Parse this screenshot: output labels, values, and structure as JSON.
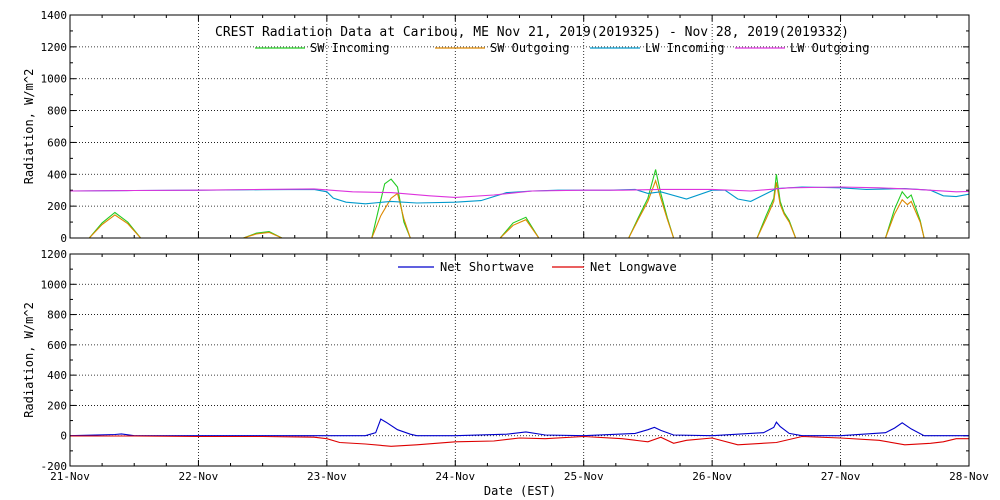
{
  "figure": {
    "title": "CREST Radiation Data at Caribou, ME   Nov 21, 2019(2019325) - Nov 28, 2019(2019332)",
    "xlabel": "Date (EST)"
  },
  "chart_data": [
    {
      "type": "line",
      "ylabel": "Radiation, W/m^2",
      "ylim": [
        0,
        1400
      ],
      "yticks": [
        0,
        200,
        400,
        600,
        800,
        1000,
        1200,
        1400
      ],
      "xlim": [
        "2019-11-21",
        "2019-11-28"
      ],
      "xticks": [
        "21-Nov",
        "22-Nov",
        "23-Nov",
        "24-Nov",
        "25-Nov",
        "26-Nov",
        "27-Nov",
        "28-Nov"
      ],
      "grid": true,
      "legend_placement": "top",
      "series": [
        {
          "name": "SW Incoming",
          "color": "#22cc22",
          "x": [
            0,
            0.15,
            0.25,
            0.35,
            0.45,
            0.55,
            0.65,
            1.0,
            1.35,
            1.45,
            1.55,
            1.65,
            2.0,
            2.35,
            2.4,
            2.45,
            2.5,
            2.55,
            2.6,
            2.65,
            2.7,
            3.0,
            3.35,
            3.45,
            3.55,
            3.65,
            4.0,
            4.35,
            4.42,
            4.5,
            4.56,
            4.6,
            4.65,
            4.7,
            5.0,
            5.35,
            5.42,
            5.48,
            5.5,
            5.53,
            5.56,
            5.6,
            5.65,
            6.0,
            6.35,
            6.42,
            6.48,
            6.52,
            6.55,
            6.62,
            6.65,
            7.0
          ],
          "y": [
            0,
            0,
            95,
            160,
            100,
            0,
            0,
            0,
            0,
            30,
            40,
            0,
            0,
            0,
            170,
            340,
            370,
            320,
            100,
            0,
            0,
            0,
            0,
            95,
            130,
            0,
            0,
            0,
            120,
            250,
            430,
            280,
            130,
            0,
            0,
            0,
            140,
            250,
            400,
            230,
            160,
            110,
            0,
            0,
            0,
            180,
            290,
            250,
            270,
            110,
            0,
            0
          ]
        },
        {
          "name": "SW Outgoing",
          "color": "#dd8800",
          "x": [
            0,
            0.15,
            0.25,
            0.35,
            0.45,
            0.55,
            0.65,
            1.0,
            1.35,
            1.45,
            1.55,
            1.65,
            2.0,
            2.35,
            2.42,
            2.5,
            2.55,
            2.6,
            2.65,
            2.7,
            3.0,
            3.35,
            3.45,
            3.55,
            3.65,
            4.0,
            4.35,
            4.42,
            4.5,
            4.56,
            4.6,
            4.65,
            4.7,
            5.0,
            5.35,
            5.42,
            5.48,
            5.5,
            5.53,
            5.56,
            5.6,
            5.65,
            6.0,
            6.35,
            6.42,
            6.48,
            6.52,
            6.55,
            6.62,
            6.65,
            7.0
          ],
          "y": [
            0,
            0,
            85,
            145,
            90,
            0,
            0,
            0,
            0,
            25,
            35,
            0,
            0,
            0,
            140,
            250,
            280,
            120,
            0,
            0,
            0,
            0,
            80,
            115,
            0,
            0,
            0,
            110,
            230,
            360,
            250,
            120,
            0,
            0,
            0,
            120,
            230,
            350,
            210,
            150,
            100,
            0,
            0,
            0,
            150,
            240,
            210,
            230,
            100,
            0,
            0
          ]
        },
        {
          "name": "LW Incoming",
          "color": "#0099cc",
          "x": [
            0,
            0.5,
            1.0,
            1.5,
            1.9,
            2.0,
            2.05,
            2.15,
            2.3,
            2.5,
            2.7,
            3.0,
            3.2,
            3.4,
            3.6,
            3.8,
            4.0,
            4.2,
            4.4,
            4.5,
            4.6,
            4.8,
            5.0,
            5.1,
            5.2,
            5.3,
            5.5,
            5.7,
            6.0,
            6.2,
            6.5,
            6.7,
            6.8,
            6.9,
            7.0
          ],
          "y": [
            295,
            298,
            300,
            303,
            305,
            290,
            250,
            225,
            215,
            230,
            220,
            225,
            235,
            285,
            295,
            300,
            300,
            300,
            305,
            280,
            290,
            245,
            300,
            300,
            245,
            230,
            310,
            320,
            315,
            305,
            310,
            300,
            265,
            260,
            275
          ]
        },
        {
          "name": "LW Outgoing",
          "color": "#dd33dd",
          "x": [
            0,
            0.5,
            1.0,
            1.5,
            1.9,
            2.2,
            2.5,
            2.8,
            3.0,
            3.3,
            3.6,
            4.0,
            4.3,
            4.6,
            5.0,
            5.3,
            5.6,
            6.0,
            6.3,
            6.6,
            6.9,
            7.0
          ],
          "y": [
            295,
            298,
            300,
            305,
            308,
            290,
            285,
            265,
            255,
            270,
            295,
            300,
            300,
            305,
            305,
            295,
            315,
            320,
            315,
            305,
            290,
            292
          ]
        }
      ]
    },
    {
      "type": "line",
      "ylabel": "Radiation, W/m^2",
      "ylim": [
        -200,
        1200
      ],
      "yticks": [
        -200,
        0,
        200,
        400,
        600,
        800,
        1000,
        1200
      ],
      "xlim": [
        "2019-11-21",
        "2019-11-28"
      ],
      "xticks": [
        "21-Nov",
        "22-Nov",
        "23-Nov",
        "24-Nov",
        "25-Nov",
        "26-Nov",
        "27-Nov",
        "28-Nov"
      ],
      "grid": true,
      "legend_placement": "top",
      "series": [
        {
          "name": "Net Shortwave",
          "color": "#0000cc",
          "x": [
            0,
            0.35,
            0.4,
            0.5,
            1.0,
            1.5,
            2.0,
            2.3,
            2.38,
            2.42,
            2.46,
            2.55,
            2.65,
            2.7,
            3.0,
            3.4,
            3.55,
            3.7,
            4.0,
            4.4,
            4.5,
            4.55,
            4.6,
            4.7,
            5.0,
            5.4,
            5.48,
            5.5,
            5.53,
            5.6,
            5.7,
            6.0,
            6.35,
            6.42,
            6.48,
            6.55,
            6.65,
            7.0
          ],
          "y": [
            0,
            8,
            12,
            0,
            0,
            0,
            0,
            0,
            20,
            110,
            90,
            40,
            10,
            0,
            0,
            10,
            25,
            5,
            0,
            15,
            40,
            55,
            35,
            5,
            0,
            20,
            55,
            90,
            60,
            15,
            0,
            0,
            20,
            50,
            85,
            45,
            0,
            0
          ]
        },
        {
          "name": "Net Longwave",
          "color": "#dd0000",
          "x": [
            0,
            0.5,
            1.0,
            1.5,
            1.9,
            2.0,
            2.1,
            2.3,
            2.5,
            2.7,
            3.0,
            3.3,
            3.5,
            3.7,
            4.0,
            4.3,
            4.5,
            4.6,
            4.7,
            4.8,
            5.0,
            5.2,
            5.5,
            5.7,
            6.0,
            6.3,
            6.5,
            6.7,
            6.8,
            6.9,
            7.0
          ],
          "y": [
            -2,
            -2,
            -5,
            -5,
            -10,
            -20,
            -45,
            -55,
            -70,
            -60,
            -40,
            -35,
            -15,
            -20,
            -5,
            -20,
            -40,
            -10,
            -50,
            -30,
            -15,
            -60,
            -45,
            -5,
            -15,
            -30,
            -60,
            -50,
            -40,
            -20,
            -20
          ]
        }
      ]
    }
  ]
}
